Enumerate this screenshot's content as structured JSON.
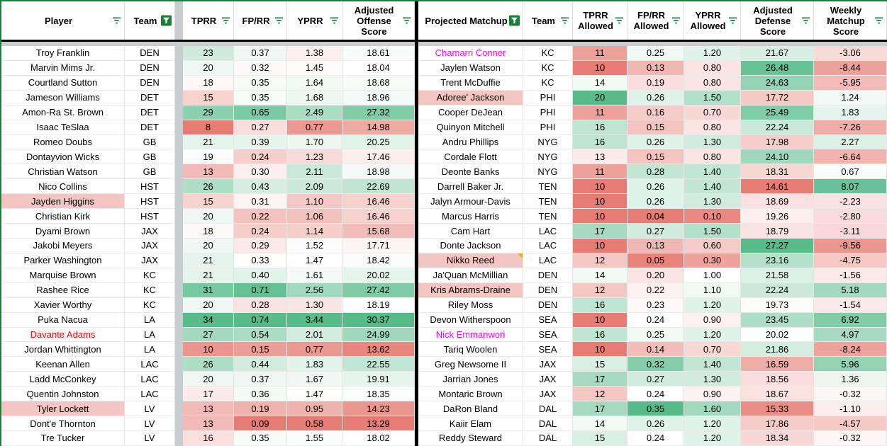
{
  "sheet": {
    "accent_green": "#188038",
    "divider_black": "#000000",
    "strip_gray": "#c9cccf",
    "grid_gray": "#e4e4e4",
    "highlight_pink": "#f3c6c3",
    "note_orange": "#f5a623",
    "red_text": "#ff0000",
    "magenta_text": "#ff00fe",
    "scale_colors": {
      "min": "#e67c73",
      "mid": "#ffffff",
      "max": "#57bb8a"
    }
  },
  "left_table": {
    "columns": [
      {
        "label": "Player",
        "filter": "inactive"
      },
      {
        "label": "Team",
        "filter": "active"
      },
      {
        "label": "TPRR",
        "filter": "inactive",
        "scale": {
          "min": 8,
          "mid": 18.5,
          "max": 34
        }
      },
      {
        "label": "FP/RR",
        "filter": "inactive",
        "scale": {
          "min": 0.09,
          "mid": 0.33,
          "max": 0.74
        }
      },
      {
        "label": "YPRR",
        "filter": "inactive",
        "scale": {
          "min": 0.58,
          "mid": 1.48,
          "max": 3.44
        }
      },
      {
        "label": "Adjusted Offense Score",
        "filter": "inactive",
        "scale": {
          "min": 13.29,
          "mid": 18.1,
          "max": 30.37
        }
      }
    ],
    "rows": [
      {
        "name": "Troy Franklin",
        "team": "DEN",
        "values": [
          "23",
          "0.37",
          "1.38",
          "18.61"
        ],
        "name_style": null,
        "note": false
      },
      {
        "name": "Marvin Mims Jr.",
        "team": "DEN",
        "values": [
          "20",
          "0.32",
          "1.45",
          "18.04"
        ],
        "name_style": null,
        "note": false
      },
      {
        "name": "Courtland Sutton",
        "team": "DEN",
        "values": [
          "18",
          "0.35",
          "1.64",
          "18.68"
        ],
        "name_style": null,
        "note": false
      },
      {
        "name": "Jameson Williams",
        "team": "DET",
        "values": [
          "15",
          "0.35",
          "1.68",
          "18.96"
        ],
        "name_style": null,
        "note": false
      },
      {
        "name": "Amon-Ra St. Brown",
        "team": "DET",
        "values": [
          "29",
          "0.65",
          "2.49",
          "27.32"
        ],
        "name_style": null,
        "note": false
      },
      {
        "name": "Isaac TeSlaa",
        "team": "DET",
        "values": [
          "8",
          "0.27",
          "0.77",
          "14.98"
        ],
        "name_style": null,
        "note": false
      },
      {
        "name": "Romeo Doubs",
        "team": "GB",
        "values": [
          "21",
          "0.39",
          "1.70",
          "20.25"
        ],
        "name_style": null,
        "note": false
      },
      {
        "name": "Dontayvion Wicks",
        "team": "GB",
        "values": [
          "19",
          "0.24",
          "1.23",
          "17.46"
        ],
        "name_style": null,
        "note": false
      },
      {
        "name": "Christian Watson",
        "team": "GB",
        "values": [
          "13",
          "0.30",
          "2.11",
          "18.98"
        ],
        "name_style": null,
        "note": false
      },
      {
        "name": "Nico Collins",
        "team": "HST",
        "values": [
          "26",
          "0.43",
          "2.09",
          "22.69"
        ],
        "name_style": null,
        "note": false
      },
      {
        "name": "Jayden Higgins",
        "team": "HST",
        "values": [
          "15",
          "0.31",
          "1.10",
          "16.46"
        ],
        "name_style": "pink-bg",
        "note": false
      },
      {
        "name": "Christian Kirk",
        "team": "HST",
        "values": [
          "20",
          "0.22",
          "1.06",
          "16.46"
        ],
        "name_style": null,
        "note": false
      },
      {
        "name": "Dyami Brown",
        "team": "JAX",
        "values": [
          "18",
          "0.24",
          "1.14",
          "15.68"
        ],
        "name_style": null,
        "note": false
      },
      {
        "name": "Jakobi Meyers",
        "team": "JAX",
        "values": [
          "20",
          "0.29",
          "1.52",
          "17.71"
        ],
        "name_style": null,
        "note": false
      },
      {
        "name": "Parker Washington",
        "team": "JAX",
        "values": [
          "21",
          "0.33",
          "1.47",
          "18.42"
        ],
        "name_style": null,
        "note": false
      },
      {
        "name": "Marquise Brown",
        "team": "KC",
        "values": [
          "21",
          "0.40",
          "1.61",
          "20.02"
        ],
        "name_style": null,
        "note": false
      },
      {
        "name": "Rashee Rice",
        "team": "KC",
        "values": [
          "31",
          "0.71",
          "2.56",
          "27.42"
        ],
        "name_style": null,
        "note": false
      },
      {
        "name": "Xavier Worthy",
        "team": "KC",
        "values": [
          "20",
          "0.28",
          "1.30",
          "18.19"
        ],
        "name_style": null,
        "note": false
      },
      {
        "name": "Puka Nacua",
        "team": "LA",
        "values": [
          "34",
          "0.74",
          "3.44",
          "30.37"
        ],
        "name_style": null,
        "note": false
      },
      {
        "name": "Davante Adams",
        "team": "LA",
        "values": [
          "27",
          "0.54",
          "2.01",
          "24.99"
        ],
        "name_style": "red-text",
        "note": false
      },
      {
        "name": "Jordan Whittington",
        "team": "LA",
        "values": [
          "10",
          "0.15",
          "0.77",
          "13.62"
        ],
        "name_style": null,
        "note": false
      },
      {
        "name": "Keenan Allen",
        "team": "LAC",
        "values": [
          "26",
          "0.44",
          "1.83",
          "22.55"
        ],
        "name_style": null,
        "note": false
      },
      {
        "name": "Ladd McConkey",
        "team": "LAC",
        "values": [
          "20",
          "0.37",
          "1.67",
          "19.91"
        ],
        "name_style": null,
        "note": false
      },
      {
        "name": "Quentin Johnston",
        "team": "LAC",
        "values": [
          "17",
          "0.36",
          "1.47",
          "18.35"
        ],
        "name_style": null,
        "note": false
      },
      {
        "name": "Tyler Lockett",
        "team": "LV",
        "values": [
          "13",
          "0.19",
          "0.95",
          "14.23"
        ],
        "name_style": "pink-bg",
        "note": false
      },
      {
        "name": "Dont'e Thornton",
        "team": "LV",
        "values": [
          "13",
          "0.09",
          "0.58",
          "13.29"
        ],
        "name_style": null,
        "note": false
      },
      {
        "name": "Tre Tucker",
        "team": "LV",
        "values": [
          "16",
          "0.35",
          "1.55",
          "18.02"
        ],
        "name_style": null,
        "note": false
      }
    ],
    "partial_row_colors": [
      "#ffffff",
      "#ffffff",
      "#f1b0aa",
      "#eb9188",
      "#eb9188",
      "#eb9188"
    ],
    "partial_note": false
  },
  "right_table": {
    "columns": [
      {
        "label": "Projected Matchup",
        "filter": "active"
      },
      {
        "label": "Team",
        "filter": "inactive"
      },
      {
        "label": "TPRR Allowed",
        "filter": "inactive",
        "scale": {
          "min": 10,
          "mid": 13.5,
          "max": 20
        }
      },
      {
        "label": "FP/RR Allowed",
        "filter": "inactive",
        "scale": {
          "min": 0.04,
          "mid": 0.24,
          "max": 0.35
        }
      },
      {
        "label": "YPRR Allowed",
        "filter": "inactive",
        "scale": {
          "min": 0,
          "mid": 1.0,
          "max": 2.1
        }
      },
      {
        "label": "Adjusted Defense Score",
        "filter": "inactive",
        "scale": {
          "min": 14.61,
          "mid": 19.9,
          "max": 27.3
        }
      },
      {
        "label": "Weekly Matchup Score",
        "filter": "inactive",
        "scale": {
          "min": -12,
          "mid": 0.5,
          "max": 9
        }
      }
    ],
    "rows": [
      {
        "name": "Chamarri Conner",
        "team": "KC",
        "values": [
          "11",
          "0.25",
          "1.20",
          "21.67",
          "-3.06"
        ],
        "name_style": "magenta-text",
        "note": false
      },
      {
        "name": "Jaylen Watson",
        "team": "KC",
        "values": [
          "10",
          "0.13",
          "0.80",
          "26.48",
          "-8.44"
        ],
        "name_style": null,
        "note": false
      },
      {
        "name": "Trent McDuffie",
        "team": "KC",
        "values": [
          "14",
          "0.19",
          "0.80",
          "24.63",
          "-5.95"
        ],
        "name_style": null,
        "note": false
      },
      {
        "name": "Adoree' Jackson",
        "team": "PHI",
        "values": [
          "20",
          "0.26",
          "1.50",
          "17.72",
          "1.24"
        ],
        "name_style": "pink-bg",
        "note": false
      },
      {
        "name": "Cooper DeJean",
        "team": "PHI",
        "values": [
          "11",
          "0.16",
          "0.70",
          "25.49",
          "1.83"
        ],
        "name_style": null,
        "note": false
      },
      {
        "name": "Quinyon Mitchell",
        "team": "PHI",
        "values": [
          "16",
          "0.15",
          "0.80",
          "22.24",
          "-7.26"
        ],
        "name_style": null,
        "note": false
      },
      {
        "name": "Andru Phillips",
        "team": "NYG",
        "values": [
          "16",
          "0.26",
          "1.30",
          "17.98",
          "2.27"
        ],
        "name_style": null,
        "note": false
      },
      {
        "name": "Cordale Flott",
        "team": "NYG",
        "values": [
          "13",
          "0.15",
          "0.80",
          "24.10",
          "-6.64"
        ],
        "name_style": null,
        "note": false
      },
      {
        "name": "Deonte Banks",
        "team": "NYG",
        "values": [
          "11",
          "0.28",
          "1.40",
          "18.31",
          "0.67"
        ],
        "name_style": null,
        "note": false
      },
      {
        "name": "Darrell Baker Jr.",
        "team": "TEN",
        "values": [
          "10",
          "0.26",
          "1.40",
          "14.61",
          "8.07"
        ],
        "name_style": null,
        "note": false
      },
      {
        "name": "Jalyn Armour-Davis",
        "team": "TEN",
        "values": [
          "10",
          "0.26",
          "1.30",
          "18.69",
          "-2.23"
        ],
        "name_style": null,
        "note": false
      },
      {
        "name": "Marcus Harris",
        "team": "TEN",
        "values": [
          "10",
          "0.04",
          "0.10",
          "19.26",
          "-2.80"
        ],
        "name_style": null,
        "note": false
      },
      {
        "name": "Cam Hart",
        "team": "LAC",
        "values": [
          "17",
          "0.27",
          "1.50",
          "18.79",
          "-3.11"
        ],
        "name_style": null,
        "note": false
      },
      {
        "name": "Donte Jackson",
        "team": "LAC",
        "values": [
          "10",
          "0.13",
          "0.60",
          "27.27",
          "-9.56"
        ],
        "name_style": null,
        "note": false
      },
      {
        "name": "Nikko Reed",
        "team": "LAC",
        "values": [
          "12",
          "0.05",
          "0.30",
          "23.16",
          "-4.75"
        ],
        "name_style": "pink-bg",
        "note": true
      },
      {
        "name": "Ja'Quan McMillian",
        "team": "DEN",
        "values": [
          "14",
          "0.20",
          "1.00",
          "21.58",
          "-1.56"
        ],
        "name_style": null,
        "note": false
      },
      {
        "name": "Kris Abrams-Draine",
        "team": "DEN",
        "values": [
          "12",
          "0.22",
          "1.10",
          "22.24",
          "5.18"
        ],
        "name_style": "pink-bg",
        "note": false
      },
      {
        "name": "Riley Moss",
        "team": "DEN",
        "values": [
          "16",
          "0.23",
          "1.20",
          "19.73",
          "-1.54"
        ],
        "name_style": null,
        "note": false
      },
      {
        "name": "Devon Witherspoon",
        "team": "SEA",
        "values": [
          "10",
          "0.24",
          "0.90",
          "23.45",
          "6.92"
        ],
        "name_style": null,
        "note": false
      },
      {
        "name": "Nick Emmanwori",
        "team": "SEA",
        "values": [
          "16",
          "0.25",
          "1.20",
          "20.02",
          "4.97"
        ],
        "name_style": "magenta-text",
        "note": false
      },
      {
        "name": "Tariq Woolen",
        "team": "SEA",
        "values": [
          "10",
          "0.14",
          "0.70",
          "21.86",
          "-8.24"
        ],
        "name_style": null,
        "note": false
      },
      {
        "name": "Greg Newsome II",
        "team": "JAX",
        "values": [
          "15",
          "0.32",
          "1.40",
          "16.59",
          "5.96"
        ],
        "name_style": null,
        "note": false
      },
      {
        "name": "Jarrian Jones",
        "team": "JAX",
        "values": [
          "17",
          "0.27",
          "1.30",
          "18.56",
          "1.36"
        ],
        "name_style": null,
        "note": false
      },
      {
        "name": "Montaric Brown",
        "team": "JAX",
        "values": [
          "12",
          "0.24",
          "0.90",
          "18.67",
          "-0.32"
        ],
        "name_style": null,
        "note": false
      },
      {
        "name": "DaRon Bland",
        "team": "DAL",
        "values": [
          "17",
          "0.35",
          "1.60",
          "15.33",
          "-1.10"
        ],
        "name_style": null,
        "note": false
      },
      {
        "name": "Kaiir Elam",
        "team": "DAL",
        "values": [
          "14",
          "0.26",
          "1.20",
          "17.86",
          "-4.57"
        ],
        "name_style": null,
        "note": false
      },
      {
        "name": "Reddy Steward",
        "team": "DAL",
        "values": [
          "15",
          "0.24",
          "1.20",
          "18.34",
          "-0.32"
        ],
        "name_style": null,
        "note": false
      }
    ],
    "partial_row_colors": [
      "#f4cbc8",
      "#ffffff",
      "#d7eee2",
      "#ffffff",
      "#ffffff",
      "#ec9186",
      "#f5cdc9"
    ],
    "partial_note": true
  }
}
